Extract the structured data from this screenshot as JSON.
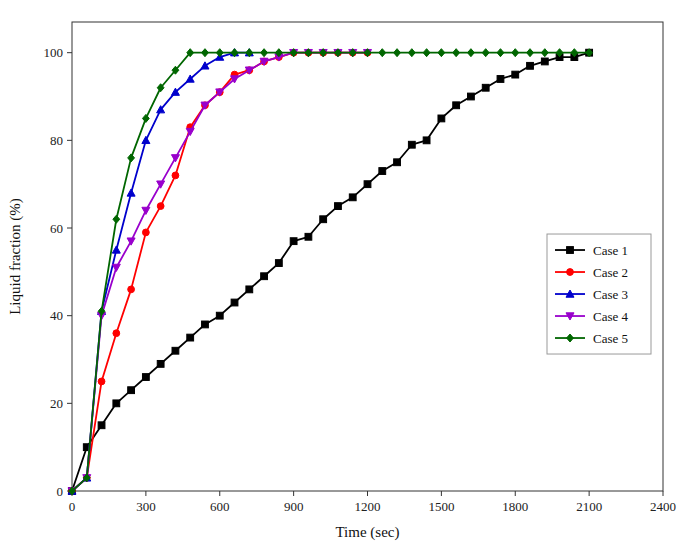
{
  "chart_data": {
    "type": "line",
    "xlabel": "Time (sec)",
    "ylabel": "Liquid fraction (%)",
    "xlim": [
      0,
      2400
    ],
    "ylim": [
      0,
      107
    ],
    "xticks": [
      0,
      300,
      600,
      900,
      1200,
      1500,
      1800,
      2100,
      2400
    ],
    "yticks": [
      0,
      20,
      40,
      60,
      80,
      100
    ],
    "grid": false,
    "legend": "right",
    "series": [
      {
        "name": "Case 1",
        "color": "#000000",
        "marker": "square",
        "x": [
          0,
          60,
          120,
          180,
          240,
          300,
          360,
          420,
          480,
          540,
          600,
          660,
          720,
          780,
          840,
          900,
          960,
          1020,
          1080,
          1140,
          1200,
          1260,
          1320,
          1380,
          1440,
          1500,
          1560,
          1620,
          1680,
          1740,
          1800,
          1860,
          1920,
          1980,
          2040,
          2100
        ],
        "values": [
          0,
          10,
          15,
          20,
          23,
          26,
          29,
          32,
          35,
          38,
          40,
          43,
          46,
          49,
          52,
          57,
          58,
          62,
          65,
          67,
          70,
          73,
          75,
          79,
          80,
          85,
          88,
          90,
          92,
          94,
          95,
          97,
          98,
          99,
          99,
          100
        ]
      },
      {
        "name": "Case 2",
        "color": "#ff0000",
        "marker": "circle",
        "x": [
          0,
          60,
          120,
          180,
          240,
          300,
          360,
          420,
          480,
          540,
          600,
          660,
          720,
          780,
          840,
          900,
          960,
          1020,
          1080,
          1140,
          1200
        ],
        "values": [
          0,
          3,
          25,
          36,
          46,
          59,
          65,
          72,
          83,
          88,
          91,
          95,
          96,
          98,
          99,
          100,
          100,
          100,
          100,
          100,
          100
        ]
      },
      {
        "name": "Case 3",
        "color": "#0000cc",
        "marker": "triangle-up",
        "x": [
          0,
          60,
          120,
          180,
          240,
          300,
          360,
          420,
          480,
          540,
          600,
          660,
          720
        ],
        "values": [
          0,
          3,
          41,
          55,
          68,
          80,
          87,
          91,
          94,
          97,
          99,
          100,
          100
        ]
      },
      {
        "name": "Case 4",
        "color": "#9900cc",
        "marker": "triangle-down",
        "x": [
          0,
          60,
          120,
          180,
          240,
          300,
          360,
          420,
          480,
          540,
          600,
          660,
          720,
          780,
          840,
          900,
          960,
          1020,
          1080,
          1140,
          1200
        ],
        "values": [
          0,
          3,
          40,
          51,
          57,
          64,
          70,
          76,
          82,
          88,
          91,
          94,
          96,
          98,
          99,
          100,
          100,
          100,
          100,
          100,
          100
        ]
      },
      {
        "name": "Case 5",
        "color": "#006600",
        "marker": "diamond",
        "x": [
          0,
          60,
          120,
          180,
          240,
          300,
          360,
          420,
          480,
          540,
          600,
          660,
          720,
          780,
          840,
          900,
          960,
          1020,
          1080,
          1140,
          1200,
          1260,
          1320,
          1380,
          1440,
          1500,
          1560,
          1620,
          1680,
          1740,
          1800,
          1860,
          1920,
          1980,
          2040,
          2100
        ],
        "values": [
          0,
          3,
          41,
          62,
          76,
          85,
          92,
          96,
          100,
          100,
          100,
          100,
          100,
          100,
          100,
          100,
          100,
          100,
          100,
          100,
          100,
          100,
          100,
          100,
          100,
          100,
          100,
          100,
          100,
          100,
          100,
          100,
          100,
          100,
          100,
          100
        ]
      }
    ]
  }
}
